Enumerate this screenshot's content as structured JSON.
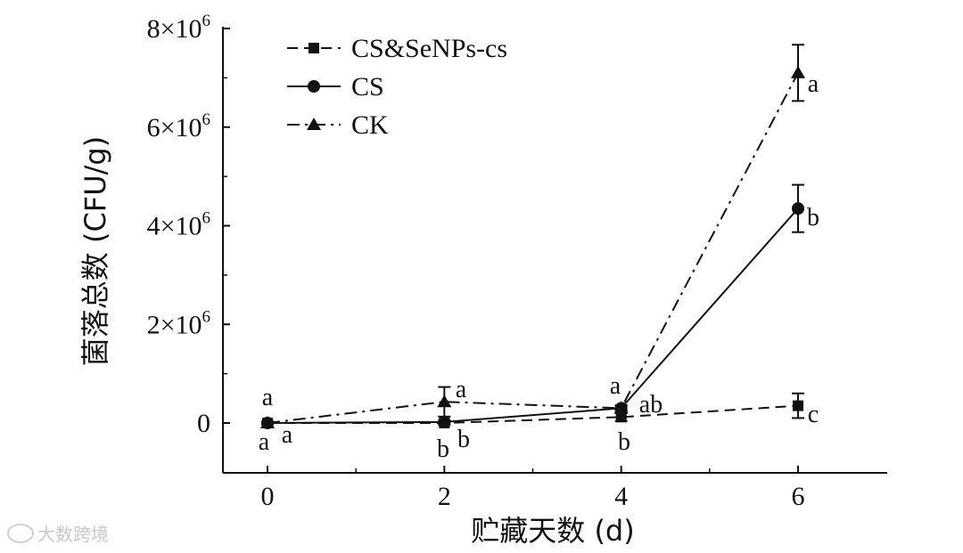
{
  "chart_data": {
    "type": "line",
    "xlabel": "贮藏天数 (d)",
    "ylabel": "菌落总数 (CFU/g)",
    "x": [
      0,
      2,
      4,
      6
    ],
    "x_ticks": [
      0,
      2,
      4,
      6
    ],
    "x_tick_labels": [
      "0",
      "2",
      "4",
      "6"
    ],
    "xlim": [
      -0.5,
      7
    ],
    "ylim": [
      -1000000,
      8000000
    ],
    "y_ticks": [
      0,
      2000000,
      4000000,
      6000000,
      8000000
    ],
    "y_tick_labels": [
      {
        "base": "0",
        "exp": ""
      },
      {
        "base": "2×10",
        "exp": "6"
      },
      {
        "base": "4×10",
        "exp": "6"
      },
      {
        "base": "6×10",
        "exp": "6"
      },
      {
        "base": "8×10",
        "exp": "6"
      }
    ],
    "grid": false,
    "legend_position": "top-left",
    "series": [
      {
        "name": "CS&SeNPs-cs",
        "marker": "square",
        "line_style": "dashed",
        "values": [
          0,
          0,
          120000,
          350000
        ],
        "errors": [
          30000,
          40000,
          80000,
          250000
        ],
        "significance": [
          "a",
          "b",
          "b",
          "c"
        ]
      },
      {
        "name": "CS",
        "marker": "circle",
        "line_style": "solid",
        "values": [
          0,
          20000,
          300000,
          4350000
        ],
        "errors": [
          20000,
          30000,
          60000,
          480000
        ],
        "significance": [
          "a",
          "b",
          "ab",
          "b"
        ]
      },
      {
        "name": "CK",
        "marker": "triangle",
        "line_style": "dashdot",
        "values": [
          0,
          430000,
          300000,
          7100000
        ],
        "errors": [
          20000,
          300000,
          50000,
          570000
        ],
        "significance": [
          "a",
          "a",
          "a",
          "a"
        ]
      }
    ]
  },
  "watermark": {
    "text": "大数跨境",
    "icon": "logo-swirl-icon"
  }
}
